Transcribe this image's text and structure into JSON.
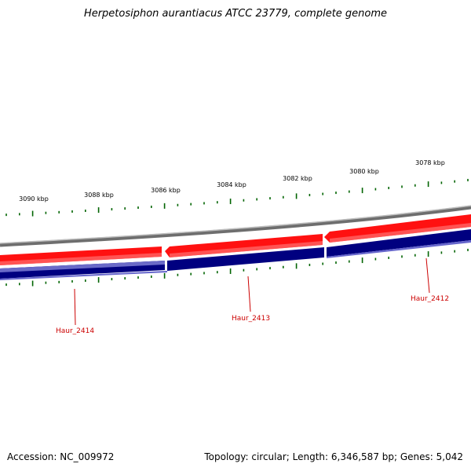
{
  "title": "Herpetosiphon aurantiacus ATCC 23779, complete genome",
  "accession": "Accession: NC_009972",
  "summary": "Topology: circular; Length: 6,346,587 bp; Genes: 5,042",
  "colors": {
    "backbone": "#808080",
    "forward_gene": "#ff0000",
    "reverse_gene": "#000080",
    "ticks": "#006400",
    "gene_label": "#cc0000"
  },
  "scale_labels": [
    "3090 kbp",
    "3088 kbp",
    "3086 kbp",
    "3084 kbp",
    "3082 kbp",
    "3080 kbp",
    "3078 kbp"
  ],
  "genes": [
    {
      "name": "Haur_2414"
    },
    {
      "name": "Haur_2413"
    },
    {
      "name": "Haur_2412"
    }
  ]
}
